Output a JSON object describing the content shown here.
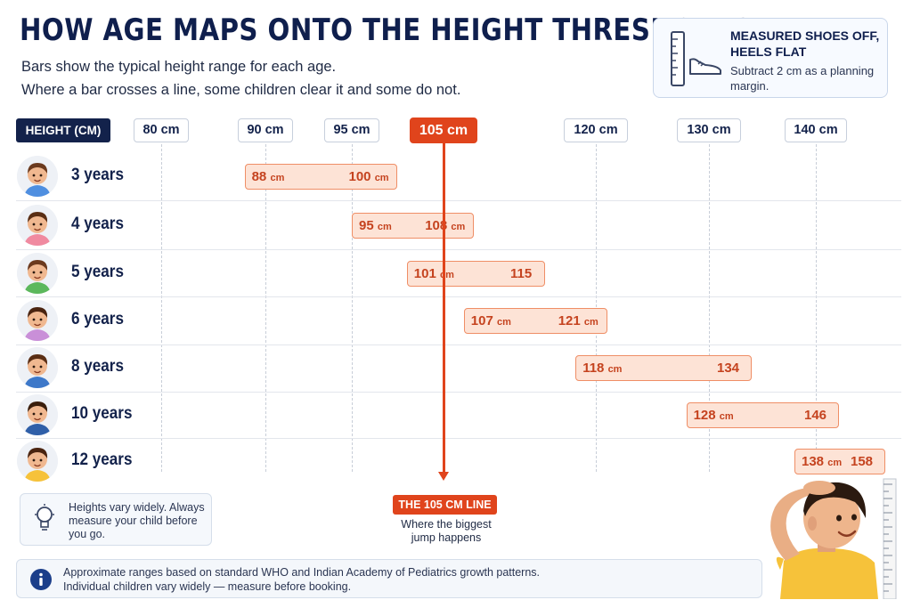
{
  "title": "HOW AGE MAPS ONTO THE HEIGHT THRESHOLDS",
  "subtitle_lines": [
    "Bars show the typical height range for each age.",
    "Where a bar crosses a line, some children clear it and some do not."
  ],
  "note": {
    "title": "MEASURED SHOES OFF, HEELS FLAT",
    "body": "Subtract 2 cm as a planning margin."
  },
  "axis_label": "HEIGHT (CM)",
  "tip": "Heights vary widely. Always measure your child before you go.",
  "threshold_callout": {
    "title": "THE 105 CM LINE",
    "caption": "Where the biggest jump happens"
  },
  "source_lines": [
    "Approximate ranges based on standard WHO and Indian Academy of Pediatrics growth patterns.",
    "Individual children vary widely — measure before booking."
  ],
  "colors": {
    "accent": "#e0441c",
    "navy": "#13224b",
    "bar_fill": "#fde3d6",
    "bar_border": "#ef8e66"
  },
  "icons": [
    "ruler-icon",
    "shoe-icon",
    "child-avatar-icon",
    "lightbulb-icon",
    "info-icon",
    "child-measuring-illustration"
  ],
  "chart_data": {
    "type": "bar",
    "orientation": "horizontal-range",
    "tick_labels": [
      "80 cm",
      "90 cm",
      "95 cm",
      "105 cm",
      "120 cm",
      "130 cm",
      "140 cm"
    ],
    "ticks": [
      80,
      90,
      95,
      105,
      120,
      130,
      140
    ],
    "highlight_tick": 105,
    "categories": [
      "3 years",
      "4 years",
      "5 years",
      "6 years",
      "8 years",
      "10 years",
      "12 years"
    ],
    "ranges": [
      {
        "age": "3 years",
        "low": 88,
        "high": 100,
        "low_label": "88",
        "high_label": "100",
        "low_unit": "cm",
        "high_unit": "cm"
      },
      {
        "age": "4 years",
        "low": 95,
        "high": 108,
        "low_label": "95",
        "high_label": "108",
        "low_unit": "cm",
        "high_unit": "cm"
      },
      {
        "age": "5 years",
        "low": 101,
        "high": 115,
        "low_label": "101",
        "high_label": "115",
        "low_unit": "cm",
        "high_unit": ""
      },
      {
        "age": "6 years",
        "low": 107,
        "high": 121,
        "low_label": "107",
        "high_label": "121",
        "low_unit": "cm",
        "high_unit": "cm"
      },
      {
        "age": "8 years",
        "low": 118,
        "high": 134,
        "low_label": "118",
        "high_label": "134",
        "low_unit": "cm",
        "high_unit": ""
      },
      {
        "age": "10 years",
        "low": 128,
        "high": 146,
        "low_label": "128",
        "high_label": "146",
        "low_unit": "cm",
        "high_unit": ""
      },
      {
        "age": "12 years",
        "low": 138,
        "high": 158,
        "low_label": "138",
        "high_label": "158",
        "low_unit": "cm",
        "high_unit": ""
      }
    ]
  }
}
